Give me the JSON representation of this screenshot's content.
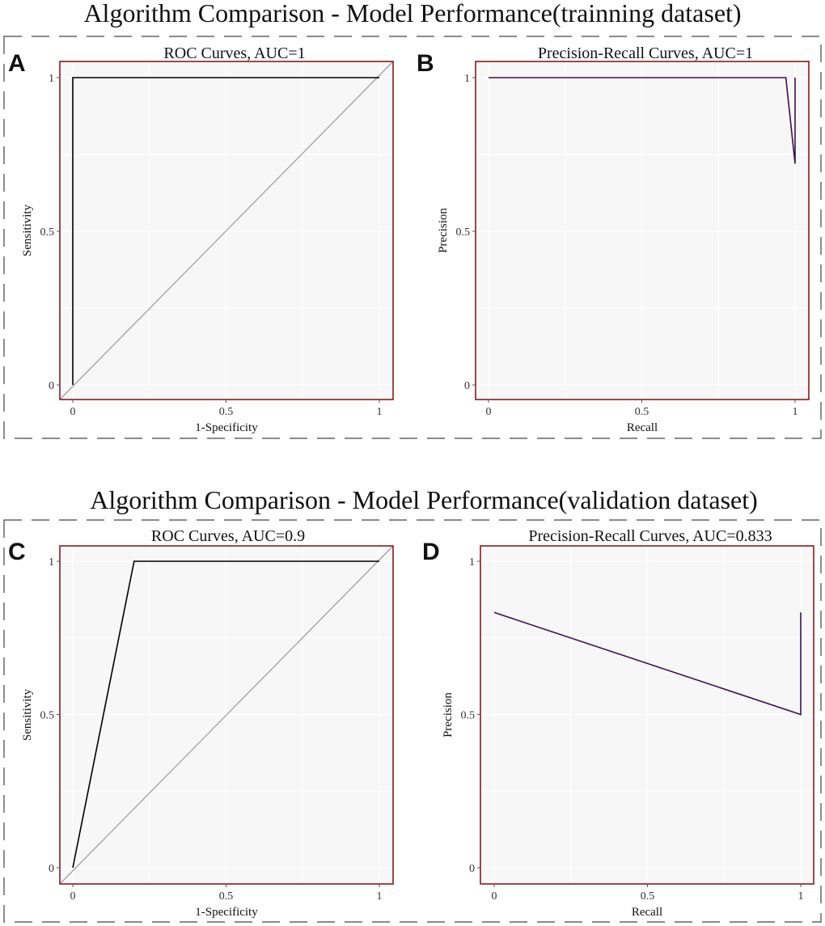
{
  "sections": [
    {
      "title": "Algorithm Comparison - Model Performance(trainning dataset)",
      "panels": [
        "A",
        "B"
      ]
    },
    {
      "title": "Algorithm Comparison - Model Performance(validation dataset)",
      "panels": [
        "C",
        "D"
      ]
    }
  ],
  "colors": {
    "panel_border": "#8B1A1A",
    "plot_bg": "#F7F7F7",
    "roc_line": "#000000",
    "pr_line": "#3B0F4F",
    "diagonal": "#A0A0A0"
  },
  "chart_data": [
    {
      "id": "A",
      "type": "line",
      "title": "ROC Curves, AUC=1",
      "xlabel": "1-Specificity",
      "ylabel": "Sensitivity",
      "xlim": [
        0,
        1
      ],
      "ylim": [
        0,
        1
      ],
      "xticks": [
        "0",
        "0.5",
        "1"
      ],
      "yticks": [
        "0",
        "0.5",
        "1"
      ],
      "reference_diagonal": true,
      "series": [
        {
          "name": "ROC",
          "x": [
            0,
            0,
            1
          ],
          "y": [
            0,
            1,
            1
          ]
        }
      ]
    },
    {
      "id": "B",
      "type": "line",
      "title": "Precision-Recall Curves, AUC=1",
      "xlabel": "Recall",
      "ylabel": "Precision",
      "xlim": [
        0,
        1
      ],
      "ylim": [
        0,
        1
      ],
      "xticks": [
        "0",
        "0.5",
        "1"
      ],
      "yticks": [
        "0",
        "0.5",
        "1"
      ],
      "reference_diagonal": false,
      "series": [
        {
          "name": "PR",
          "x": [
            0,
            0.97,
            1,
            1
          ],
          "y": [
            1,
            1,
            0.72,
            1
          ]
        }
      ]
    },
    {
      "id": "C",
      "type": "line",
      "title": "ROC Curves, AUC=0.9",
      "xlabel": "1-Specificity",
      "ylabel": "Sensitivity",
      "xlim": [
        0,
        1
      ],
      "ylim": [
        0,
        1
      ],
      "xticks": [
        "0",
        "0.5",
        "1"
      ],
      "yticks": [
        "0",
        "0.5",
        "1"
      ],
      "reference_diagonal": true,
      "series": [
        {
          "name": "ROC",
          "x": [
            0,
            0.2,
            1
          ],
          "y": [
            0,
            1,
            1
          ]
        }
      ]
    },
    {
      "id": "D",
      "type": "line",
      "title": "Precision-Recall Curves, AUC=0.833",
      "xlabel": "Recall",
      "ylabel": "Precision",
      "xlim": [
        0,
        1
      ],
      "ylim": [
        0,
        1
      ],
      "xticks": [
        "0",
        "0.5",
        "1"
      ],
      "yticks": [
        "0",
        "0.5",
        "1"
      ],
      "reference_diagonal": false,
      "series": [
        {
          "name": "PR",
          "x": [
            0,
            1,
            1
          ],
          "y": [
            0.833,
            0.5,
            0.833
          ]
        }
      ]
    }
  ]
}
